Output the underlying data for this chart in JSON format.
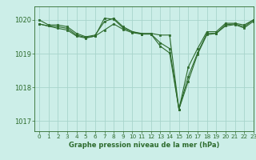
{
  "title": "Graphe pression niveau de la mer (hPa)",
  "background_color": "#cceee8",
  "line_color": "#2d6b2d",
  "grid_color": "#a8d4cc",
  "xlim": [
    -0.5,
    23
  ],
  "ylim": [
    1016.7,
    1020.4
  ],
  "yticks": [
    1017,
    1018,
    1019,
    1020
  ],
  "xticks": [
    0,
    1,
    2,
    3,
    4,
    5,
    6,
    7,
    8,
    9,
    10,
    11,
    12,
    13,
    14,
    15,
    16,
    17,
    18,
    19,
    20,
    21,
    22,
    23
  ],
  "series": [
    {
      "x": [
        0,
        1,
        2,
        3,
        4,
        5,
        6,
        7,
        8,
        9,
        10,
        11,
        12,
        13,
        14,
        15,
        16,
        17,
        18,
        19,
        20,
        21,
        22,
        23
      ],
      "y": [
        1020.0,
        1019.85,
        1019.85,
        1019.8,
        1019.6,
        1019.5,
        1019.55,
        1019.95,
        1020.05,
        1019.8,
        1019.65,
        1019.6,
        1019.6,
        1019.55,
        1019.55,
        1017.35,
        1018.6,
        1019.15,
        1019.65,
        1019.65,
        1019.9,
        1019.9,
        1019.85,
        1020.0
      ]
    },
    {
      "x": [
        0,
        1,
        2,
        3,
        4,
        5,
        6,
        7,
        8,
        9,
        10,
        11,
        12,
        13,
        14,
        15,
        16,
        17,
        18,
        19,
        20,
        21,
        22,
        23
      ],
      "y": [
        1019.88,
        1019.82,
        1019.8,
        1019.75,
        1019.55,
        1019.48,
        1019.52,
        1019.7,
        1019.88,
        1019.72,
        1019.62,
        1019.58,
        1019.58,
        1019.32,
        1019.15,
        1017.35,
        1018.32,
        1019.02,
        1019.6,
        1019.6,
        1019.86,
        1019.88,
        1019.8,
        1020.0
      ]
    },
    {
      "x": [
        0,
        2,
        3,
        4,
        5,
        6,
        7,
        8,
        9,
        10,
        11,
        12,
        13,
        14,
        15,
        16,
        17,
        18,
        19,
        20,
        21,
        22,
        23
      ],
      "y": [
        1019.88,
        1019.75,
        1019.7,
        1019.52,
        1019.46,
        1019.52,
        1020.05,
        1020.02,
        1019.76,
        1019.65,
        1019.58,
        1019.58,
        1019.22,
        1019.02,
        1017.35,
        1018.18,
        1018.98,
        1019.56,
        1019.6,
        1019.82,
        1019.86,
        1019.76,
        1019.96
      ]
    }
  ]
}
